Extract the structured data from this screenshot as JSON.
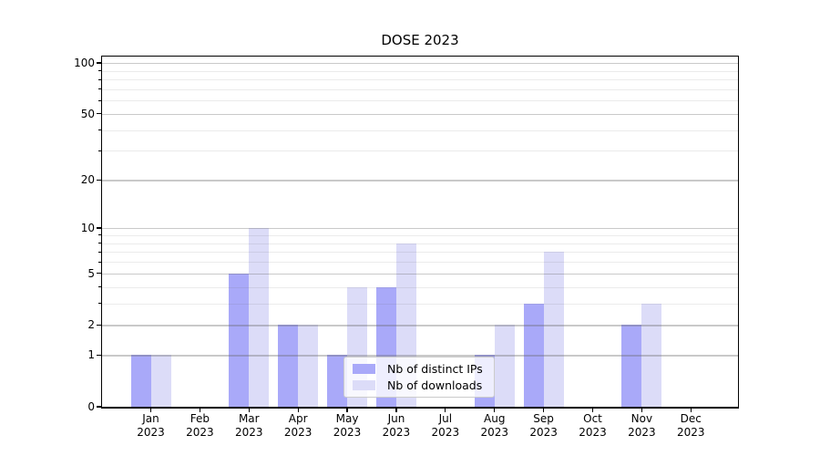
{
  "chart_data": {
    "type": "bar",
    "title": "DOSE 2023",
    "categories": [
      "Jan",
      "Feb",
      "Mar",
      "Apr",
      "May",
      "Jun",
      "Jul",
      "Aug",
      "Sep",
      "Oct",
      "Nov",
      "Dec"
    ],
    "x_sublabel": "2023",
    "series": [
      {
        "name": "Nb of distinct IPs",
        "color": "#a9a9f9",
        "values": [
          1,
          0,
          5,
          2,
          1,
          4,
          0,
          1,
          3,
          0,
          2,
          0
        ]
      },
      {
        "name": "Nb of downloads",
        "color": "#dcdcf8",
        "values": [
          1,
          0,
          10,
          2,
          4,
          8,
          0,
          2,
          7,
          0,
          3,
          0
        ]
      }
    ],
    "yscale": "log10(value+1)",
    "y_major_ticks": [
      0,
      1,
      2,
      5,
      10,
      20,
      50,
      100
    ],
    "y_minor_ticks": [
      3,
      4,
      6,
      7,
      8,
      9,
      30,
      40,
      60,
      70,
      80,
      90
    ],
    "ylim": [
      0,
      110
    ],
    "xlabel": "",
    "ylabel": "",
    "grid": true,
    "legend_position": "lower center"
  }
}
